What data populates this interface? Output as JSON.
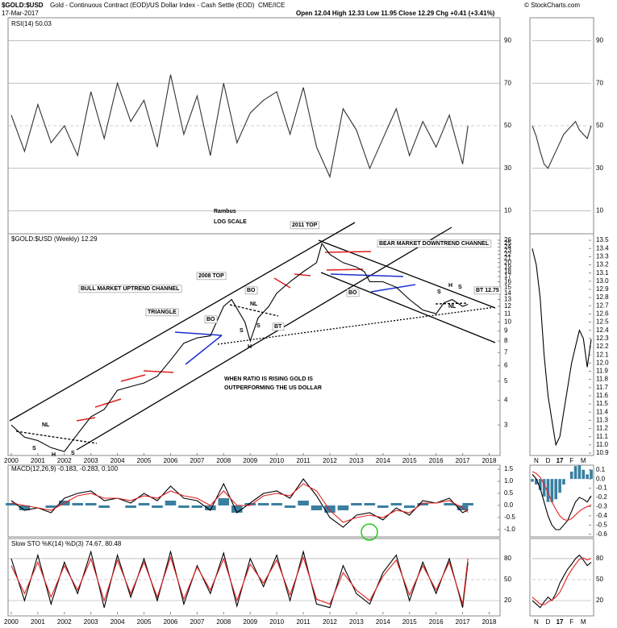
{
  "header": {
    "symbol": "$GOLD:$USD",
    "description": "Gold - Continuous Contract (EOD)/US Dollar Index - Cash Settle (EOD)",
    "exchange": "CME/ICE",
    "date": "17-Mar-2017",
    "quote": "Open 12.04 High 12.33 Low 11.95 Close 12.29 Chg +0.41 (+3.41%)",
    "credit": "© StockCharts.com"
  },
  "chart_data": [
    {
      "type": "line",
      "legend_text": "RSI(14) 50.03",
      "x": [
        2000,
        2000.5,
        2001,
        2001.5,
        2002,
        2002.5,
        2003,
        2003.5,
        2004,
        2004.5,
        2005,
        2005.5,
        2006,
        2006.5,
        2007,
        2007.5,
        2008,
        2008.5,
        2009,
        2009.5,
        2010,
        2010.5,
        2011,
        2011.5,
        2012,
        2012.5,
        2013,
        2013.5,
        2014,
        2014.5,
        2015,
        2015.5,
        2016,
        2016.5,
        2017,
        2017.2
      ],
      "series": [
        {
          "color": "#333333",
          "values": [
            55,
            38,
            60,
            42,
            50,
            36,
            66,
            44,
            70,
            52,
            62,
            40,
            74,
            46,
            64,
            36,
            70,
            42,
            56,
            62,
            66,
            46,
            68,
            40,
            26,
            58,
            48,
            30,
            44,
            58,
            36,
            52,
            40,
            55,
            32,
            50
          ]
        }
      ],
      "xlim": [
        1999.88,
        2018.41
      ],
      "ylim": [
        0,
        100
      ],
      "yticks": [
        10,
        30,
        50,
        70,
        90
      ],
      "grid": true
    },
    {
      "type": "line",
      "log_scale": true,
      "legend_text": "$GOLD:$USD (Weekly) 12.29",
      "x": [
        2000,
        2000.5,
        2001,
        2001.5,
        2002,
        2002.5,
        2003,
        2003.5,
        2004,
        2004.5,
        2005,
        2005.5,
        2006,
        2006.5,
        2007,
        2007.5,
        2008,
        2008.3,
        2008.8,
        2009,
        2009.3,
        2009.7,
        2010,
        2010.5,
        2011,
        2011.5,
        2011.7,
        2012,
        2012.5,
        2013,
        2013.3,
        2013.5,
        2014,
        2014.5,
        2015,
        2015.5,
        2016,
        2016.3,
        2016.6,
        2017,
        2017.2
      ],
      "series": [
        {
          "color": "#000000",
          "values": [
            3.0,
            2.6,
            2.5,
            2.3,
            2.2,
            2.7,
            3.3,
            3.6,
            4.5,
            4.7,
            4.9,
            5.3,
            6.4,
            7.8,
            8.3,
            8.5,
            12,
            13,
            10,
            8,
            10.5,
            12,
            14,
            16,
            18,
            20,
            25,
            22,
            20,
            19,
            18,
            16,
            16,
            15,
            13,
            11.5,
            11,
            12.5,
            13,
            12,
            12.29
          ]
        }
      ],
      "xlim": [
        1999.88,
        2018.41
      ],
      "ylim": [
        2.1,
        27.5
      ],
      "yticks": [
        3,
        4,
        5,
        6,
        7,
        8,
        9,
        10,
        11,
        12,
        13,
        14,
        15,
        16,
        17,
        18,
        19,
        20,
        21,
        22,
        23,
        24,
        25,
        26
      ],
      "xticks": [
        2000,
        2001,
        2002,
        2003,
        2004,
        2005,
        2006,
        2007,
        2008,
        2009,
        2010,
        2011,
        2012,
        2013,
        2014,
        2015,
        2016,
        2017,
        2018
      ],
      "annotations": [
        "Rambus",
        "LOG SCALE",
        "2011 TOP",
        "BEAR MARKET DOWNTREND CHANNEL",
        "BULL MARKET UPTREND CHANNEL",
        "2008 TOP",
        "TRIANGLE",
        "BO",
        "BO",
        "BO",
        "BT",
        "BT 12.75",
        "NL",
        "NL",
        "NL",
        "S",
        "H",
        "S",
        "S",
        "H",
        "S",
        "S",
        "H",
        "S",
        "WHEN RATIO IS RISING GOLD IS",
        "OUTPERFORMING THE US DOLLAR"
      ]
    },
    {
      "type": "line",
      "legend_text": "MACD(12,26,9) -0.183, -0.283, 0.100",
      "x": [
        2000,
        2000.5,
        2001,
        2001.5,
        2002,
        2002.5,
        2003,
        2003.5,
        2004,
        2004.5,
        2005,
        2005.5,
        2006,
        2006.5,
        2007,
        2007.5,
        2008,
        2008.5,
        2009,
        2009.5,
        2010,
        2010.5,
        2011,
        2011.5,
        2012,
        2012.5,
        2013,
        2013.5,
        2014,
        2014.5,
        2015,
        2015.5,
        2016,
        2016.5,
        2017,
        2017.2
      ],
      "series": [
        {
          "color": "#3a7fa0",
          "kind": "histogram",
          "values": [
            0.1,
            -0.2,
            0,
            -0.1,
            0.2,
            0.1,
            0.1,
            -0.1,
            0,
            -0.1,
            0.1,
            -0.1,
            0.2,
            -0.1,
            -0.1,
            -0.2,
            0.3,
            -0.3,
            0.1,
            0.1,
            0.1,
            -0.1,
            0.2,
            -0.2,
            -0.3,
            -0.2,
            0.1,
            0.1,
            -0.1,
            0.1,
            -0.1,
            0.1,
            0,
            0.1,
            -0.2,
            0.1
          ]
        },
        {
          "color": "#000000",
          "values": [
            0.2,
            -0.2,
            -0.1,
            -0.3,
            0.3,
            0.5,
            0.6,
            0.2,
            0.3,
            0.1,
            0.5,
            0.2,
            0.8,
            0.3,
            0.2,
            -0.2,
            0.9,
            -0.3,
            0.1,
            0.5,
            0.6,
            0.3,
            1.1,
            0.4,
            -0.5,
            -0.9,
            -0.4,
            -0.3,
            -0.6,
            -0.1,
            -0.4,
            0.2,
            0.1,
            0.3,
            -0.3,
            -0.183
          ]
        },
        {
          "color": "#e02020",
          "values": [
            0.1,
            0,
            -0.1,
            -0.2,
            0.1,
            0.4,
            0.5,
            0.3,
            0.3,
            0.2,
            0.4,
            0.3,
            0.6,
            0.4,
            0.3,
            0,
            0.6,
            0,
            0,
            0.4,
            0.5,
            0.4,
            0.9,
            0.6,
            -0.2,
            -0.7,
            -0.5,
            -0.4,
            -0.5,
            -0.2,
            -0.3,
            0.1,
            0.1,
            0.2,
            -0.1,
            -0.283
          ]
        }
      ],
      "xlim": [
        1999.88,
        2018.41
      ],
      "ylim": [
        -1.27,
        1.67
      ],
      "yticks": [
        {
          "value": -1,
          "label": "-1.0"
        },
        -0.5,
        {
          "value": 0,
          "label": "0.0"
        },
        0.5,
        {
          "value": 1,
          "label": "1.0"
        },
        1.5
      ]
    },
    {
      "type": "line",
      "legend_text": "Slow STO %K(14) %D(3) 74.67, 80.48",
      "x": [
        2000,
        2000.5,
        2001,
        2001.5,
        2002,
        2002.5,
        2003,
        2003.5,
        2004,
        2004.5,
        2005,
        2005.5,
        2006,
        2006.5,
        2007,
        2007.5,
        2008,
        2008.5,
        2009,
        2009.5,
        2010,
        2010.5,
        2011,
        2011.5,
        2012,
        2012.5,
        2013,
        2013.5,
        2014,
        2014.5,
        2015,
        2015.5,
        2016,
        2016.5,
        2017,
        2017.2
      ],
      "series": [
        {
          "color": "#000000",
          "values": [
            80,
            20,
            85,
            15,
            75,
            30,
            90,
            10,
            85,
            25,
            80,
            20,
            90,
            15,
            70,
            30,
            88,
            12,
            80,
            40,
            85,
            20,
            90,
            15,
            10,
            70,
            30,
            15,
            60,
            85,
            20,
            75,
            30,
            80,
            10,
            74.67
          ]
        },
        {
          "color": "#e02020",
          "values": [
            70,
            30,
            75,
            25,
            70,
            35,
            80,
            20,
            78,
            30,
            75,
            25,
            82,
            22,
            68,
            35,
            80,
            20,
            72,
            45,
            78,
            28,
            82,
            22,
            15,
            60,
            35,
            20,
            55,
            78,
            28,
            70,
            35,
            75,
            15,
            80.48
          ]
        }
      ],
      "xlim": [
        1999.88,
        2018.41
      ],
      "ylim": [
        0.4,
        106.5
      ],
      "yticks": [
        20,
        50,
        80
      ],
      "xticks": [
        2000,
        2001,
        2002,
        2003,
        2004,
        2005,
        2006,
        2007,
        2008,
        2009,
        2010,
        2011,
        2012,
        2013,
        2014,
        2015,
        2016,
        2017,
        2018
      ],
      "grid": true
    },
    {
      "type": "line",
      "series": [
        {
          "color": "#333333",
          "values": [
            50,
            45,
            38,
            32,
            30,
            34,
            38,
            42,
            46,
            48,
            50,
            52,
            48,
            46,
            44,
            50
          ]
        }
      ],
      "ylim": [
        0,
        100
      ],
      "yticks": [
        10,
        30,
        50,
        70,
        90
      ],
      "grid": true
    },
    {
      "type": "line",
      "categories": [
        null,
        "N",
        null,
        null,
        "D",
        null,
        null,
        "17",
        null,
        null,
        "F",
        null,
        null,
        "M",
        null,
        null
      ],
      "series": [
        {
          "color": "#000000",
          "values": [
            13.4,
            13.2,
            12.8,
            12.1,
            11.6,
            11.3,
            11.0,
            11.1,
            11.4,
            11.7,
            12.0,
            12.2,
            12.4,
            12.3,
            11.95,
            12.29
          ]
        }
      ],
      "ylim": [
        10.87,
        13.56
      ],
      "yticks": [
        10.9,
        {
          "value": 11,
          "label": "11.0"
        },
        11.1,
        11.2,
        11.3,
        11.4,
        11.5,
        11.6,
        11.7,
        11.8,
        11.9,
        {
          "value": 12,
          "label": "12.0"
        },
        12.1,
        12.2,
        12.3,
        12.4,
        12.5,
        12.6,
        12.7,
        12.8,
        12.9,
        {
          "value": 13,
          "label": "13.0"
        },
        13.1,
        13.2,
        13.3,
        13.4,
        13.5
      ]
    },
    {
      "type": "line",
      "series": [
        {
          "color": "#3a7fa0",
          "kind": "histogram",
          "values": [
            -0.03,
            -0.06,
            -0.12,
            -0.19,
            -0.25,
            -0.25,
            -0.22,
            -0.15,
            -0.06,
            0,
            0.08,
            0.14,
            0.15,
            0.1,
            0.05,
            0.1
          ]
        },
        {
          "color": "#000000",
          "values": [
            0.05,
            0,
            -0.1,
            -0.25,
            -0.4,
            -0.5,
            -0.55,
            -0.55,
            -0.5,
            -0.45,
            -0.35,
            -0.25,
            -0.2,
            -0.22,
            -0.25,
            -0.183
          ]
        },
        {
          "color": "#e02020",
          "values": [
            0.08,
            0.06,
            0.02,
            -0.06,
            -0.15,
            -0.25,
            -0.33,
            -0.4,
            -0.44,
            -0.45,
            -0.43,
            -0.39,
            -0.35,
            -0.32,
            -0.3,
            -0.283
          ]
        }
      ],
      "ylim": [
        -0.62,
        0.15
      ],
      "yticks": [
        0.1,
        {
          "value": 0,
          "label": "0.0"
        },
        -0.1,
        -0.2,
        -0.3,
        -0.4,
        -0.5,
        -0.6
      ]
    },
    {
      "type": "line",
      "categories": [
        null,
        "N",
        null,
        null,
        "D",
        null,
        null,
        "17",
        null,
        null,
        "F",
        null,
        null,
        "M",
        null,
        null
      ],
      "series": [
        {
          "color": "#000000",
          "values": [
            20,
            15,
            10,
            18,
            25,
            20,
            30,
            45,
            55,
            65,
            72,
            80,
            85,
            78,
            70,
            74.67
          ]
        },
        {
          "color": "#e02020",
          "values": [
            25,
            20,
            15,
            14,
            18,
            21,
            25,
            32,
            43,
            55,
            64,
            72,
            79,
            81,
            78,
            80.48
          ]
        }
      ],
      "ylim": [
        0.4,
        106.5
      ],
      "yticks": [
        20,
        50,
        80
      ],
      "grid": true
    }
  ]
}
